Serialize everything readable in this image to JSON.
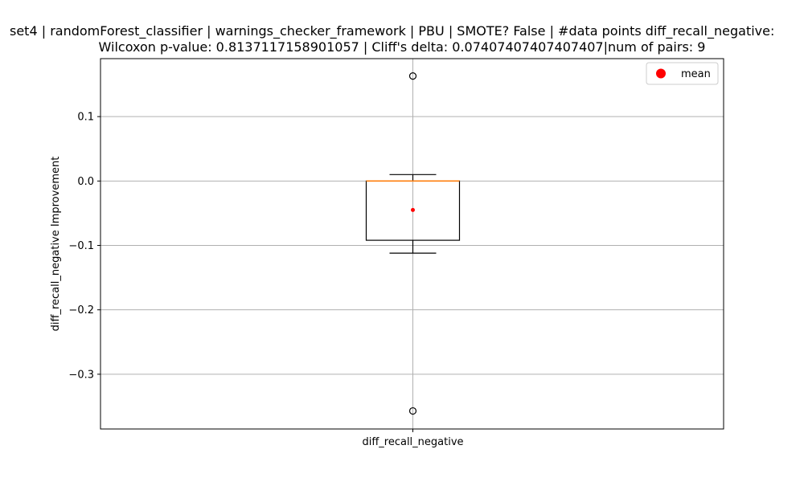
{
  "chart_data": {
    "type": "box",
    "title_line1": "set4 | randomForest_classifier | warnings_checker_framework | PBU | SMOTE? False | #data points diff_recall_negative:",
    "title_line2": "Wilcoxon p-value: 0.8137117158901057 | Cliff's delta: 0.07407407407407407|num of pairs: 9",
    "xlabel": "",
    "ylabel": "diff_recall_negative Improvement",
    "categories": [
      "diff_recall_negative"
    ],
    "ylim": [
      -0.385,
      0.19
    ],
    "yticks": [
      0.1,
      0.0,
      -0.1,
      -0.2,
      -0.3
    ],
    "ytick_labels": [
      "0.1",
      "0.0",
      "−0.1",
      "−0.2",
      "−0.3"
    ],
    "grid": true,
    "legend": {
      "position": "top-right",
      "entries": [
        "mean"
      ]
    },
    "box": {
      "whisker_low": -0.112,
      "q1": -0.092,
      "median": 0.0,
      "q3": 0.0,
      "whisker_high": 0.01,
      "mean": -0.045,
      "outliers": [
        0.163,
        -0.357
      ]
    },
    "colors": {
      "median": "#ff7f0e",
      "mean": "#ff0000",
      "grid": "#b0b0b0",
      "box": "#000000"
    }
  }
}
